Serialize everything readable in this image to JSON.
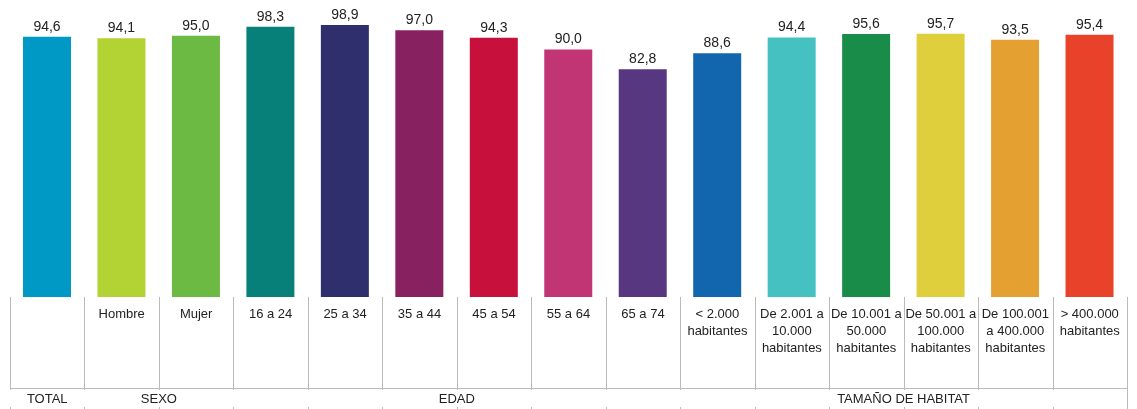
{
  "chart_data": {
    "type": "bar",
    "categories": [
      null,
      "Hombre",
      "Mujer",
      "16 a 24",
      "25 a 34",
      "35 a 44",
      "45 a 54",
      "55 a 64",
      "65 a 74",
      "< 2.000 habitantes",
      "De 2.001 a 10.000 habitantes",
      "De 10.001 a 50.000 habitantes",
      "De 50.001 a 100.000 habitantes",
      "De 100.001 a 400.000 habitantes",
      "> 400.000 habitantes"
    ],
    "values": [
      94.6,
      94.1,
      95.0,
      98.3,
      98.9,
      97.0,
      94.3,
      90.0,
      82.8,
      88.6,
      94.4,
      95.6,
      95.7,
      93.5,
      95.4
    ],
    "value_labels": [
      "94,6",
      "94,1",
      "95,0",
      "98,3",
      "98,9",
      "97,0",
      "94,3",
      "90,0",
      "82,8",
      "88,6",
      "94,4",
      "95,6",
      "95,7",
      "93,5",
      "95,4"
    ],
    "colors": [
      "#0099c6",
      "#b3d334",
      "#6cb944",
      "#08807a",
      "#2e2f6c",
      "#88215f",
      "#c8103c",
      "#c23574",
      "#583781",
      "#1166ad",
      "#45c1c1",
      "#1a8c4a",
      "#e0cf3c",
      "#e4a030",
      "#e8432a"
    ],
    "annotations": [
      "TOTAL",
      "SEXO",
      "EDAD",
      "TAMAÑO DE HABITAT"
    ],
    "grid": false,
    "legend": false
  }
}
